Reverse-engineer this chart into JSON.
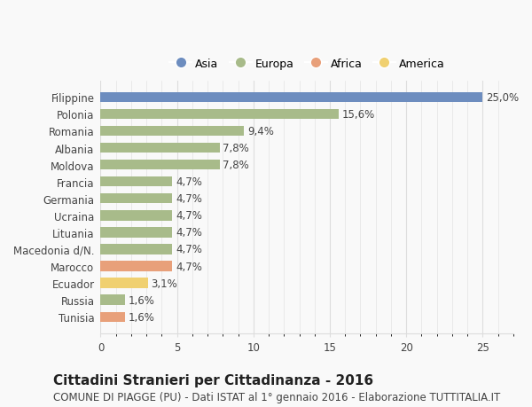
{
  "categories": [
    "Tunisia",
    "Russia",
    "Ecuador",
    "Marocco",
    "Macedonia d/N.",
    "Lituania",
    "Ucraina",
    "Germania",
    "Francia",
    "Moldova",
    "Albania",
    "Romania",
    "Polonia",
    "Filippine"
  ],
  "values": [
    1.6,
    1.6,
    3.1,
    4.7,
    4.7,
    4.7,
    4.7,
    4.7,
    4.7,
    7.8,
    7.8,
    9.4,
    15.6,
    25.0
  ],
  "labels": [
    "1,6%",
    "1,6%",
    "3,1%",
    "4,7%",
    "4,7%",
    "4,7%",
    "4,7%",
    "4,7%",
    "4,7%",
    "7,8%",
    "7,8%",
    "9,4%",
    "15,6%",
    "25,0%"
  ],
  "continents": [
    "Africa",
    "Europa",
    "America",
    "Africa",
    "Europa",
    "Europa",
    "Europa",
    "Europa",
    "Europa",
    "Europa",
    "Europa",
    "Europa",
    "Europa",
    "Asia"
  ],
  "colors": {
    "Asia": "#6d8dbf",
    "Europa": "#a8bb8a",
    "Africa": "#e8a07a",
    "America": "#f0d070"
  },
  "legend_order": [
    "Asia",
    "Europa",
    "Africa",
    "America"
  ],
  "xlim": [
    0,
    27
  ],
  "xticks": [
    0,
    5,
    10,
    15,
    20,
    25
  ],
  "title": "Cittadini Stranieri per Cittadinanza - 2016",
  "subtitle": "COMUNE DI PIAGGE (PU) - Dati ISTAT al 1° gennaio 2016 - Elaborazione TUTTITALIA.IT",
  "background_color": "#f9f9f9",
  "bar_height": 0.6,
  "grid_color": "#dddddd",
  "label_fontsize": 8.5,
  "title_fontsize": 11,
  "subtitle_fontsize": 8.5,
  "tick_fontsize": 8.5,
  "legend_fontsize": 9
}
